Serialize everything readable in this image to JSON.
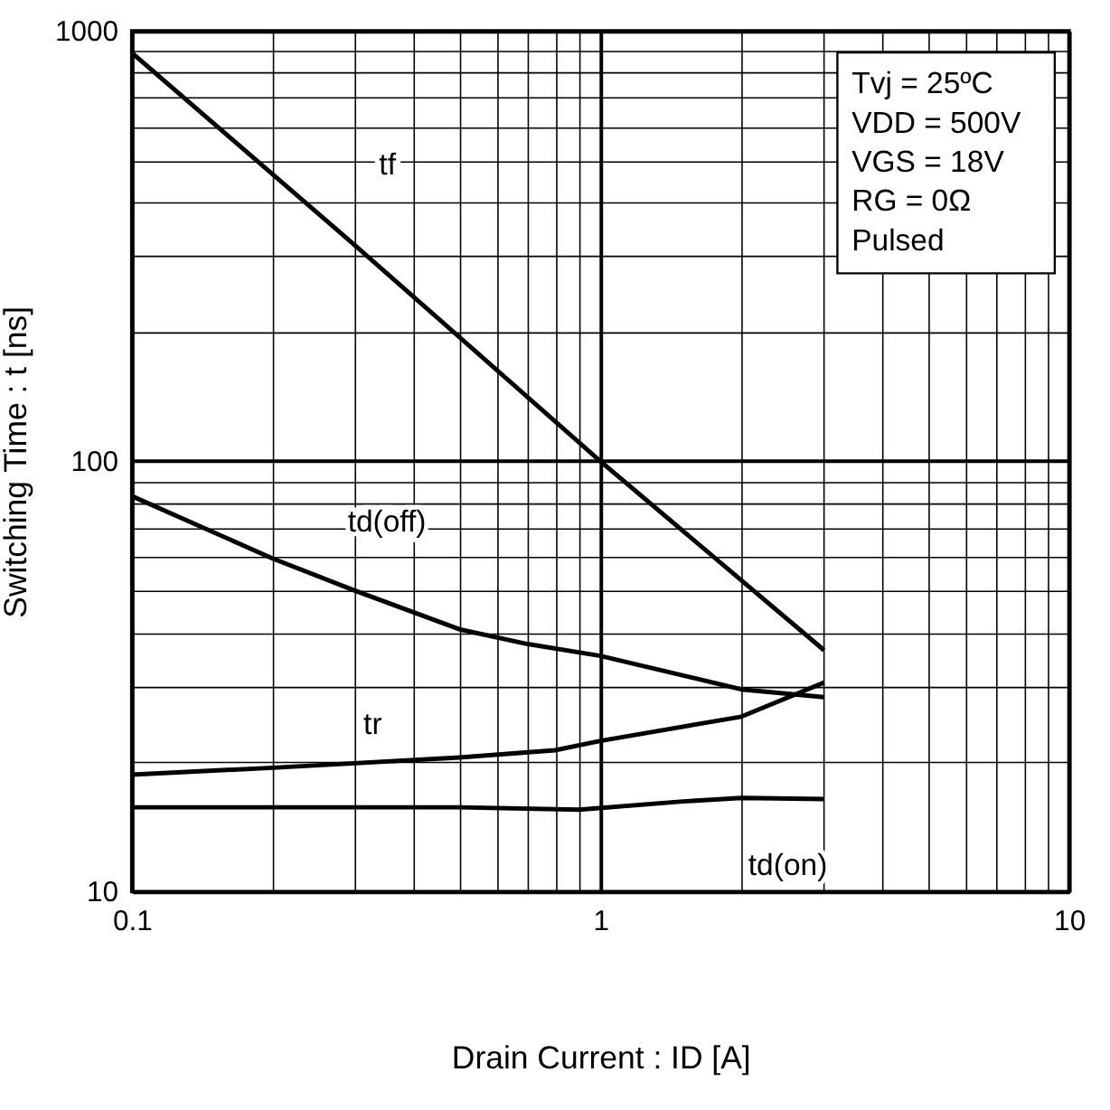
{
  "chart_data": {
    "type": "line",
    "xlabel": "Drain Current : ID [A]",
    "ylabel": "Switching Time : t [ns]",
    "log": "xy",
    "grid": true,
    "line_style": "solid",
    "marker": "none",
    "xlim": [
      0.1,
      10
    ],
    "ylim": [
      10,
      1000
    ],
    "xticks": [
      0.1,
      {
        "value": 0.2,
        "label": null
      },
      {
        "value": 0.3,
        "label": null
      },
      {
        "value": 0.4,
        "label": null
      },
      {
        "value": 0.5,
        "label": null
      },
      {
        "value": 0.6,
        "label": null
      },
      {
        "value": 0.7,
        "label": null
      },
      {
        "value": 0.8,
        "label": null
      },
      {
        "value": 0.9,
        "label": null
      },
      1,
      {
        "value": 2,
        "label": null
      },
      {
        "value": 3,
        "label": null
      },
      {
        "value": 4,
        "label": null
      },
      {
        "value": 5,
        "label": null
      },
      {
        "value": 6,
        "label": null
      },
      {
        "value": 7,
        "label": null
      },
      {
        "value": 8,
        "label": null
      },
      {
        "value": 9,
        "label": null
      },
      10
    ],
    "yticks": [
      10,
      {
        "value": 20,
        "label": null
      },
      {
        "value": 30,
        "label": null
      },
      {
        "value": 40,
        "label": null
      },
      {
        "value": 50,
        "label": null
      },
      {
        "value": 60,
        "label": null
      },
      {
        "value": 70,
        "label": null
      },
      {
        "value": 80,
        "label": null
      },
      {
        "value": 90,
        "label": null
      },
      100,
      {
        "value": 200,
        "label": null
      },
      {
        "value": 300,
        "label": null
      },
      {
        "value": 400,
        "label": null
      },
      {
        "value": 500,
        "label": null
      },
      {
        "value": 600,
        "label": null
      },
      {
        "value": 700,
        "label": null
      },
      {
        "value": 800,
        "label": null
      },
      {
        "value": 900,
        "label": null
      },
      1000
    ],
    "series": [
      {
        "name": "tf",
        "color": "#000000",
        "x": [
          0.1,
          0.3,
          1,
          3
        ],
        "values": [
          890,
          317,
          100,
          36.4
        ]
      },
      {
        "name": "td(off)",
        "color": "#000000",
        "x": [
          0.1,
          0.2,
          0.3,
          0.5,
          0.7,
          1,
          2,
          3
        ],
        "values": [
          83,
          59.4,
          50,
          40.7,
          37.6,
          35.3,
          29.5,
          28.3
        ]
      },
      {
        "name": "tr",
        "color": "#000000",
        "x": [
          0.1,
          0.2,
          0.5,
          0.8,
          1,
          2,
          3
        ],
        "values": [
          18.7,
          19.4,
          20.5,
          21.3,
          22.4,
          25.5,
          30.6
        ]
      },
      {
        "name": "td(on)",
        "color": "#000000",
        "x": [
          0.1,
          0.5,
          0.9,
          1.5,
          2,
          3
        ],
        "values": [
          15.7,
          15.7,
          15.5,
          16.2,
          16.5,
          16.4
        ]
      }
    ],
    "annotations": [
      "Tvj = 25ºC",
      "VDD = 500V",
      "VGS = 18V",
      "RG = 0Ω",
      "Pulsed"
    ]
  }
}
